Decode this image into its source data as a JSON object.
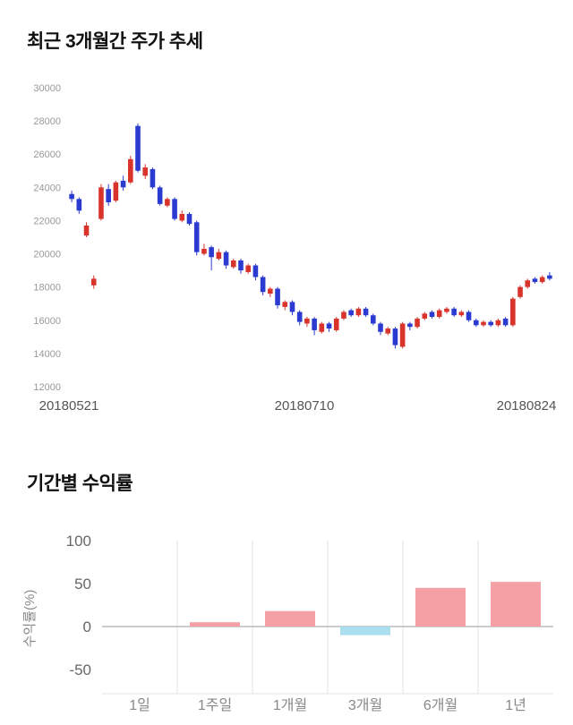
{
  "price_section": {
    "title": "최근 3개월간 주가 추세"
  },
  "returns_section": {
    "title": "기간별 수익률"
  },
  "chart_data": [
    {
      "type": "candlestick",
      "title": "최근 3개월간 주가 추세",
      "ylim": [
        12000,
        30000
      ],
      "y_ticks": [
        12000,
        14000,
        16000,
        18000,
        20000,
        22000,
        24000,
        26000,
        28000,
        30000
      ],
      "x_tick_labels": [
        "20180521",
        "20180710",
        "20180824"
      ],
      "up_color": "#d9342c",
      "down_color": "#2b3bd2",
      "axis_text_color": "#999999",
      "x_label_color": "#555555",
      "candles": [
        [
          23600,
          23800,
          23100,
          23300
        ],
        [
          23300,
          23400,
          22400,
          22600
        ],
        [
          21100,
          21900,
          21000,
          21700
        ],
        [
          18100,
          18700,
          17900,
          18500
        ],
        [
          22100,
          24200,
          22000,
          24000
        ],
        [
          23900,
          24200,
          22900,
          23100
        ],
        [
          23200,
          24400,
          23100,
          24300
        ],
        [
          24400,
          24700,
          23800,
          24000
        ],
        [
          24300,
          25900,
          24200,
          25700
        ],
        [
          27700,
          27850,
          24900,
          25000
        ],
        [
          24700,
          25400,
          24500,
          25200
        ],
        [
          25100,
          25200,
          23900,
          24000
        ],
        [
          24000,
          24100,
          22900,
          23000
        ],
        [
          22900,
          23400,
          22800,
          23300
        ],
        [
          23300,
          23400,
          22000,
          22100
        ],
        [
          22000,
          22600,
          21900,
          22400
        ],
        [
          22400,
          22500,
          21700,
          21800
        ],
        [
          21900,
          22000,
          19900,
          20100
        ],
        [
          20000,
          20600,
          19900,
          20300
        ],
        [
          20400,
          20500,
          19000,
          19800
        ],
        [
          19700,
          20300,
          19600,
          20100
        ],
        [
          20100,
          20200,
          19100,
          19300
        ],
        [
          19200,
          19700,
          19100,
          19600
        ],
        [
          19600,
          19700,
          18800,
          19000
        ],
        [
          18900,
          19400,
          18800,
          19300
        ],
        [
          19300,
          19400,
          18400,
          18600
        ],
        [
          18600,
          18700,
          17500,
          17700
        ],
        [
          17600,
          18000,
          17400,
          17900
        ],
        [
          17900,
          18000,
          16700,
          16900
        ],
        [
          16800,
          17200,
          16600,
          17100
        ],
        [
          17100,
          17200,
          16300,
          16500
        ],
        [
          16500,
          16600,
          15700,
          15900
        ],
        [
          15800,
          16200,
          15600,
          16100
        ],
        [
          16100,
          16200,
          15100,
          15400
        ],
        [
          15300,
          15900,
          15200,
          15800
        ],
        [
          15800,
          15900,
          15300,
          15500
        ],
        [
          15400,
          16200,
          15300,
          16100
        ],
        [
          16100,
          16600,
          16000,
          16500
        ],
        [
          16600,
          16700,
          16200,
          16300
        ],
        [
          16300,
          16800,
          16200,
          16700
        ],
        [
          16700,
          16800,
          16200,
          16300
        ],
        [
          16300,
          16400,
          15700,
          15800
        ],
        [
          15800,
          15900,
          15100,
          15300
        ],
        [
          15200,
          15600,
          15100,
          15500
        ],
        [
          15500,
          15600,
          14300,
          14500
        ],
        [
          14400,
          15900,
          14300,
          15800
        ],
        [
          15800,
          15900,
          15400,
          15600
        ],
        [
          15600,
          16200,
          15500,
          16100
        ],
        [
          16100,
          16500,
          16000,
          16400
        ],
        [
          16500,
          16600,
          16100,
          16200
        ],
        [
          16200,
          16700,
          16100,
          16600
        ],
        [
          16500,
          16800,
          16400,
          16700
        ],
        [
          16700,
          16800,
          16200,
          16300
        ],
        [
          16300,
          16600,
          16200,
          16500
        ],
        [
          16500,
          16600,
          15900,
          16000
        ],
        [
          16000,
          16100,
          15600,
          15700
        ],
        [
          15700,
          16000,
          15600,
          15900
        ],
        [
          15900,
          16000,
          15600,
          15700
        ],
        [
          15700,
          16100,
          15600,
          16000
        ],
        [
          16100,
          16200,
          15600,
          15700
        ],
        [
          15700,
          17400,
          15600,
          17300
        ],
        [
          17400,
          18100,
          17300,
          18000
        ],
        [
          18000,
          18500,
          17900,
          18400
        ],
        [
          18500,
          18600,
          18200,
          18300
        ],
        [
          18300,
          18700,
          18200,
          18600
        ],
        [
          18700,
          18900,
          18400,
          18500
        ]
      ]
    },
    {
      "type": "bar",
      "title": "기간별 수익률",
      "ylabel": "수익률(%)",
      "categories": [
        "1일",
        "1주일",
        "1개월",
        "3개월",
        "6개월",
        "1년"
      ],
      "values": [
        0,
        5,
        18,
        -10,
        45,
        52
      ],
      "y_ticks": [
        100,
        50,
        0,
        -50
      ],
      "ylim": [
        -78,
        100
      ],
      "positive_color": "#f5a0a5",
      "negative_color": "#abdeee",
      "grid_color": "#e3e3e3",
      "zero_line_color": "#9a9a9a",
      "axis_text_color": "#666666",
      "category_text_color": "#888888"
    }
  ]
}
